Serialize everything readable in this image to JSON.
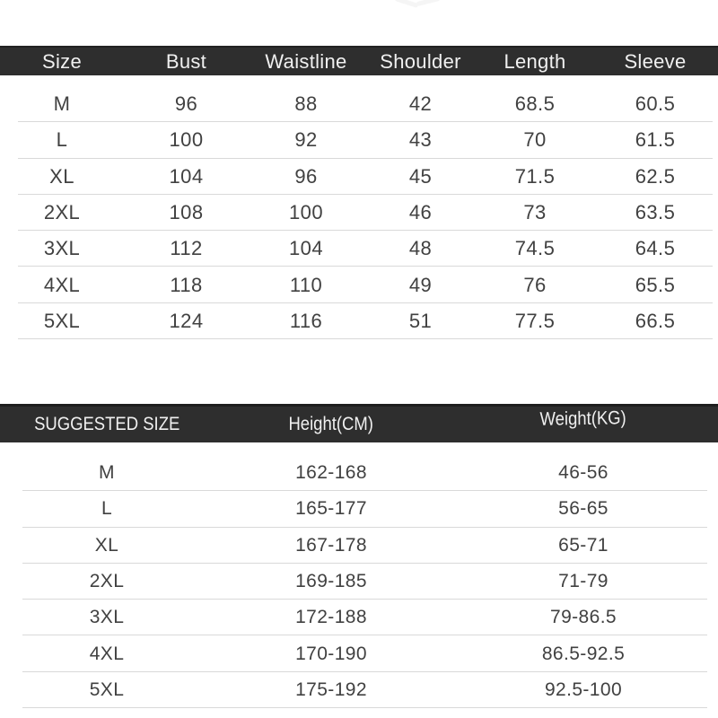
{
  "colors": {
    "header_bg": "#2e2e2e",
    "header_text": "#f0f0f0",
    "body_text": "#414141",
    "divider": "#d9d9d9",
    "background": "#ffffff"
  },
  "chart_data": [
    {
      "type": "table",
      "name": "garment-measurements-cm",
      "columns": [
        "Size",
        "Bust",
        "Waistline",
        "Shoulder",
        "Length",
        "Sleeve"
      ],
      "rows": [
        [
          "M",
          "96",
          "88",
          "42",
          "68.5",
          "60.5"
        ],
        [
          "L",
          "100",
          "92",
          "43",
          "70",
          "61.5"
        ],
        [
          "XL",
          "104",
          "96",
          "45",
          "71.5",
          "62.5"
        ],
        [
          "2XL",
          "108",
          "100",
          "46",
          "73",
          "63.5"
        ],
        [
          "3XL",
          "112",
          "104",
          "48",
          "74.5",
          "64.5"
        ],
        [
          "4XL",
          "118",
          "110",
          "49",
          "76",
          "65.5"
        ],
        [
          "5XL",
          "124",
          "116",
          "51",
          "77.5",
          "66.5"
        ]
      ]
    },
    {
      "type": "table",
      "name": "suggested-size",
      "columns": [
        "SUGGESTED SIZE",
        "Height(CM)",
        "Weight(KG)"
      ],
      "rows": [
        [
          "M",
          "162-168",
          "46-56"
        ],
        [
          "L",
          "165-177",
          "56-65"
        ],
        [
          "XL",
          "167-178",
          "65-71"
        ],
        [
          "2XL",
          "169-185",
          "71-79"
        ],
        [
          "3XL",
          "172-188",
          "79-86.5"
        ],
        [
          "4XL",
          "170-190",
          "86.5-92.5"
        ],
        [
          "5XL",
          "175-192",
          "92.5-100"
        ]
      ]
    }
  ]
}
